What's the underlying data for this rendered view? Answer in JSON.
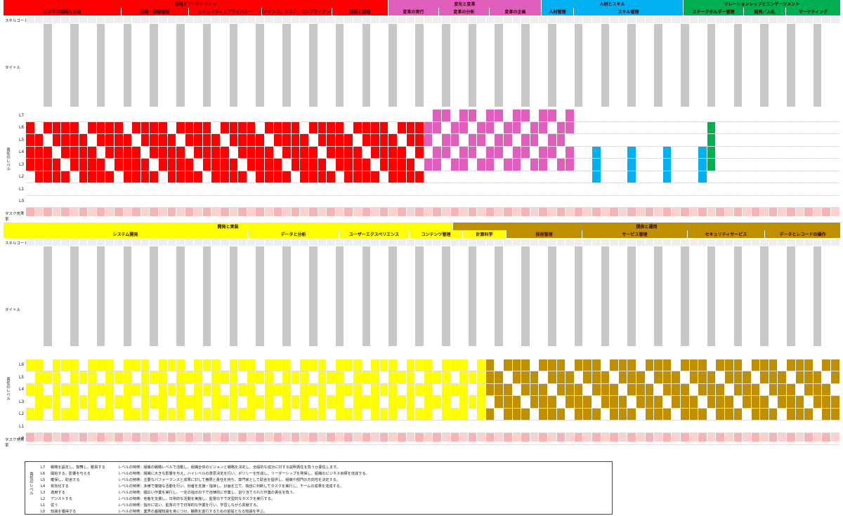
{
  "colors": {
    "red": "#ff0000",
    "pink": "#e05fbd",
    "cyan": "#00b0f0",
    "green": "#00b050",
    "yellow": "#ffff00",
    "brown": "#bf8f00",
    "pinkcell": "#f7b4b4"
  },
  "labels": {
    "skill_code": "スキルコード",
    "title": "タイトル",
    "level_caption": "責任のレベル",
    "task_size": "タスク充実率"
  },
  "levels": [
    "L7",
    "L6",
    "L5",
    "L4",
    "L3",
    "L2",
    "L1",
    "L0"
  ],
  "top": {
    "categories": [
      {
        "label": "戦略とアーキテクチャ",
        "color": "red"
      },
      {
        "label": "変化と変革",
        "color": "pink"
      },
      {
        "label": "人材とスキル",
        "color": "cyan"
      },
      {
        "label": "リレーションシップとエンゲージメント",
        "color": "green"
      }
    ],
    "subcategories": [
      {
        "label": "ビジネス戦略と計画",
        "color": "red"
      },
      {
        "label": "財務・価値管理",
        "color": "red"
      },
      {
        "label": "セキュリティとプライバシー",
        "color": "red"
      },
      {
        "label": "ガバナンス、リスク、コンプライアンス",
        "color": "red"
      },
      {
        "label": "技術と戦略",
        "color": "red"
      },
      {
        "label": "変革の実行",
        "color": "pink"
      },
      {
        "label": "変革の分析",
        "color": "pink"
      },
      {
        "label": "変革の企画",
        "color": "pink"
      },
      {
        "label": "人材管理",
        "color": "cyan"
      },
      {
        "label": "スキル管理",
        "color": "cyan"
      },
      {
        "label": "ステークホルダー管理",
        "color": "green"
      },
      {
        "label": "販売／入札",
        "color": "green"
      },
      {
        "label": "マーケティング",
        "color": "green"
      }
    ]
  },
  "bottom": {
    "categories": [
      {
        "label": "開発と実装",
        "color": "yellow"
      },
      {
        "label": "提供と運用",
        "color": "brown"
      }
    ],
    "subcategories": [
      {
        "label": "システム開発",
        "color": "yellow"
      },
      {
        "label": "データと分析",
        "color": "yellow"
      },
      {
        "label": "ユーザーエクスペリエンス",
        "color": "yellow"
      },
      {
        "label": "コンテンツ管理",
        "color": "yellow"
      },
      {
        "label": "計算科学",
        "color": "yellow"
      },
      {
        "label": "技術管理",
        "color": "brown"
      },
      {
        "label": "サービス管理",
        "color": "brown"
      },
      {
        "label": "セキュリティサービス",
        "color": "brown"
      },
      {
        "label": "データとレコードの操作",
        "color": "brown"
      }
    ]
  },
  "legend": [
    {
      "level": "L7",
      "name": "戦略を設定し、鼓舞し、動員する",
      "desc": "レベルの特徴：組織の戦略レベルで活動し、組織全体のビジョンと戦略を決定し、全般的な成功に対する説明責任を負うか委任します。"
    },
    {
      "level": "L6",
      "name": "開始する、影響を与える",
      "desc": "レベルの特徴：組織に大きな影響を与え、ハイレベルの意思決定を行い、ポリシーを形成し、リーダーシップを発揮し、組織のビジネス目標を達成する。"
    },
    {
      "level": "L5",
      "name": "確保し、助言する",
      "desc": "レベルの特徴：主要なパフォーマンスと成果に対して権限と責任を持ち、専門家として助言を提供し、組織や部門の方向性を決定する。"
    },
    {
      "level": "L4",
      "name": "有効化する",
      "desc": "レベルの特徴：多様で複雑な活動を行い、他者を支援・指導し、計画を立て、独自に判断してタスクを実行し、チームの成果を達成する。"
    },
    {
      "level": "L3",
      "name": "適用する",
      "desc": "レベルの特徴：幅広い作業を実行し、一定の指示の下で自律的に作業し、割り当てられた作業の責任を負う。"
    },
    {
      "level": "L2",
      "name": "アシストする",
      "desc": "レベルの特徴：他者を支援し、日常的な活動を実施し、監督の下で定型的なタスクを実行する。"
    },
    {
      "level": "L1",
      "name": "従う",
      "desc": "レベルの特徴：指示に従い、監督の下で日常的な作業を行い、学習しながら貢献する。"
    },
    {
      "level": "L0",
      "name": "知識を獲得する",
      "desc": "レベルの特徴：業界の基礎知識を身につけ、職務を遂行するための前提となる知識を学ぶ。"
    }
  ]
}
